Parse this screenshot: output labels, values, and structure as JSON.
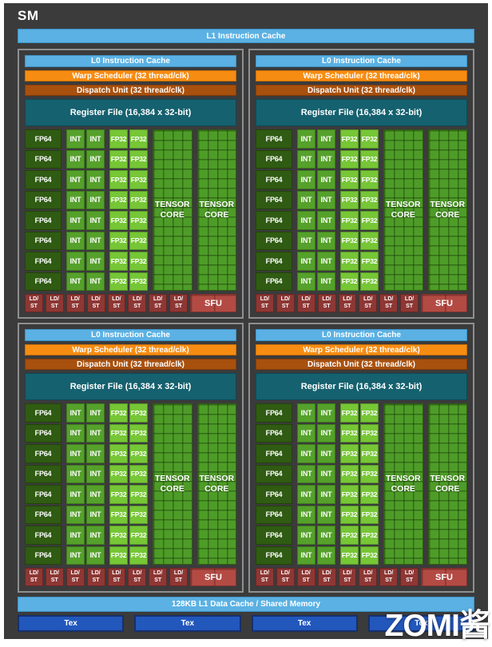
{
  "diagram_title": "SM",
  "l1_instruction_cache_label": "L1 Instruction Cache",
  "partition": {
    "count": 4,
    "l0_instruction_cache": "L0 Instruction Cache",
    "warp_scheduler": "Warp Scheduler (32 thread/clk)",
    "dispatch_unit": "Dispatch Unit (32 thread/clk)",
    "register_file": "Register File (16,384 x 32-bit)",
    "core_rows": 8,
    "fp64": "FP64",
    "int": "INT",
    "fp32": "FP32",
    "int_columns": 2,
    "fp32_columns": 2,
    "tensor_core_count": 2,
    "tensor_core_line1": "TENSOR",
    "tensor_core_line2": "CORE",
    "ldst_count": 8,
    "ldst_line1": "LD/",
    "ldst_line2": "ST",
    "sfu": "SFU"
  },
  "l1_data_cache_label": "128KB L1 Data Cache / Shared Memory",
  "tex": {
    "label": "Tex",
    "count": 4
  },
  "watermark": "ZOMI酱",
  "colors": {
    "frame_background": "#3B3B3C",
    "cache_blue": "#5BB1E3",
    "warp_orange": "#F78C12",
    "dispatch_burnt_orange": "#A8500E",
    "register_teal": "#15616F",
    "fp64_dark_green": "#2F5B12",
    "int_green": "#55A12B",
    "fp32_bright_green": "#76C636",
    "tensor_green": "#4E9C28",
    "ldst_dark_red": "#8E3734",
    "sfu_red": "#B34B44",
    "tex_blue": "#2257BC",
    "partition_border_gray": "#8E8F90",
    "text_white": "#FFFFFF"
  }
}
